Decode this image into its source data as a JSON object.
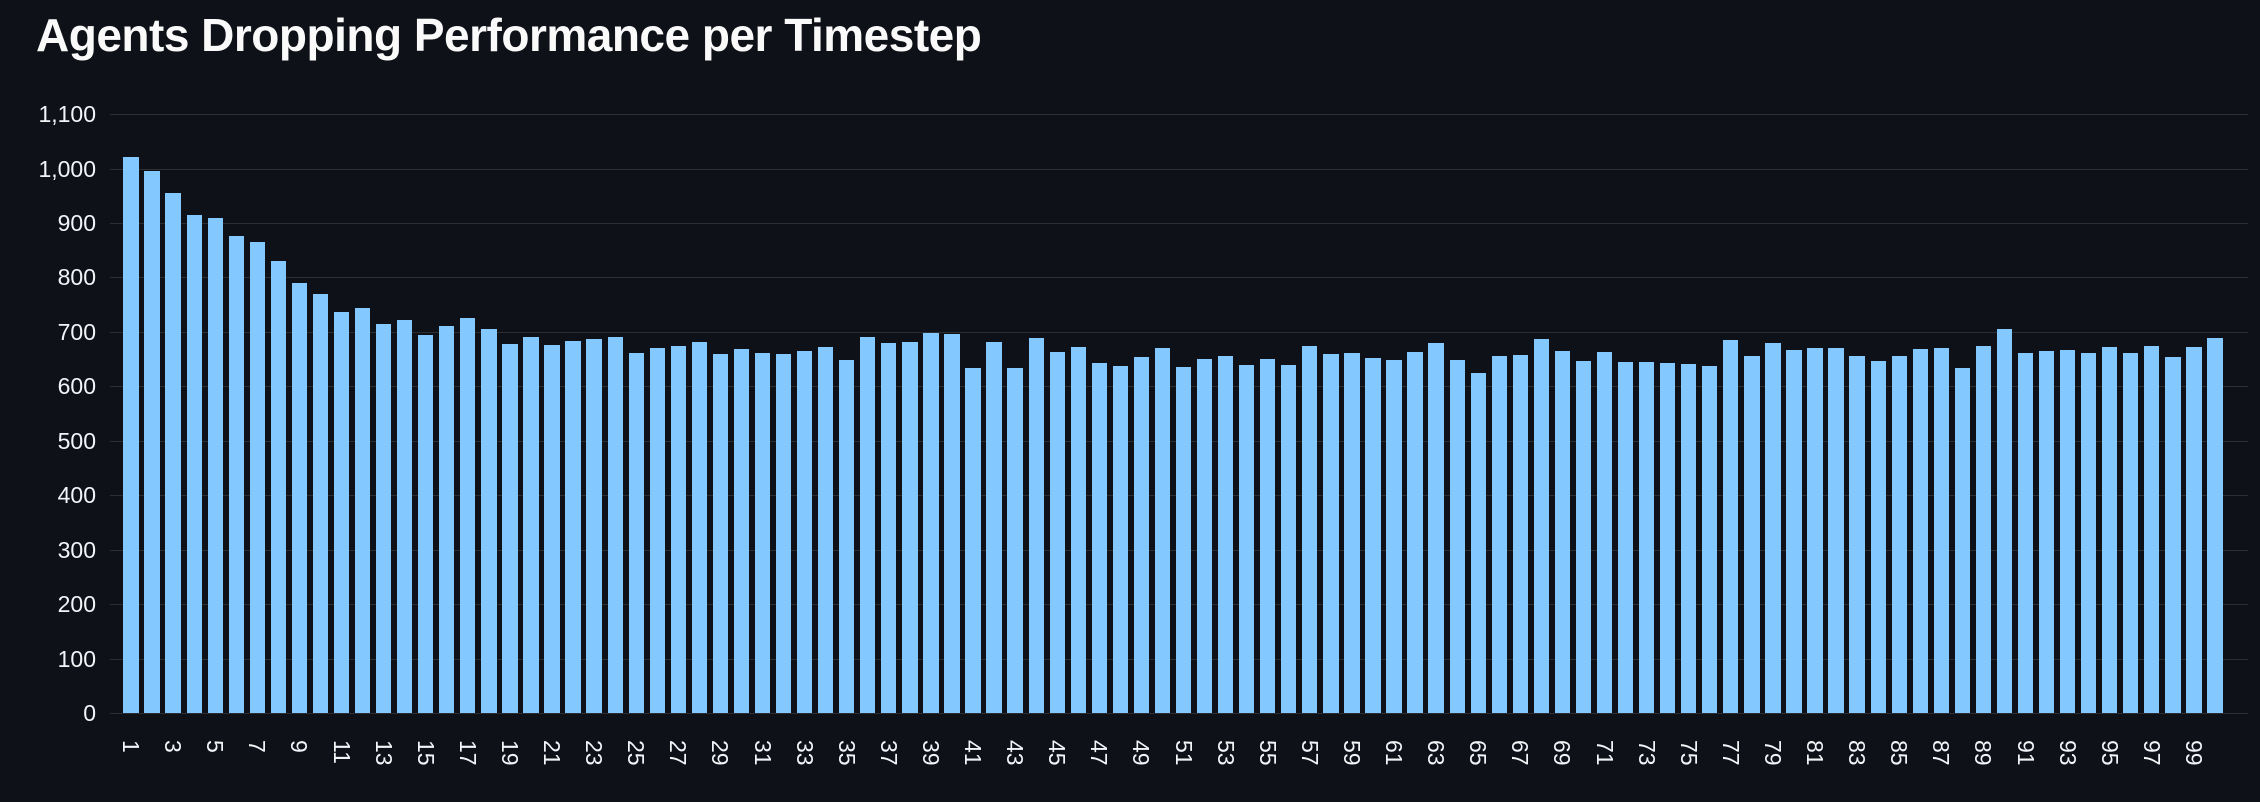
{
  "title": "Agents Dropping Performance per Timestep",
  "chart_data": {
    "type": "bar",
    "title": "Agents Dropping Performance per Timestep",
    "xlabel": "",
    "ylabel": "",
    "ylim": [
      0,
      1100
    ],
    "grid": "horizontal",
    "legend": "none",
    "x_label_rotation_deg": 90,
    "x_labels_shown_every": "odd timesteps 1-99",
    "x": [
      1,
      2,
      3,
      4,
      5,
      6,
      7,
      8,
      9,
      10,
      11,
      12,
      13,
      14,
      15,
      16,
      17,
      18,
      19,
      20,
      21,
      22,
      23,
      24,
      25,
      26,
      27,
      28,
      29,
      30,
      31,
      32,
      33,
      34,
      35,
      36,
      37,
      38,
      39,
      40,
      41,
      42,
      43,
      44,
      45,
      46,
      47,
      48,
      49,
      50,
      51,
      52,
      53,
      54,
      55,
      56,
      57,
      58,
      59,
      60,
      61,
      62,
      63,
      64,
      65,
      66,
      67,
      68,
      69,
      70,
      71,
      72,
      73,
      74,
      75,
      76,
      77,
      78,
      79,
      80,
      81,
      82,
      83,
      84,
      85,
      86,
      87,
      88,
      89,
      90,
      91,
      92,
      93,
      94,
      95,
      96,
      97,
      98,
      99,
      100
    ],
    "values": [
      1021,
      996,
      956,
      914,
      910,
      877,
      866,
      831,
      789,
      770,
      737,
      744,
      714,
      722,
      694,
      711,
      725,
      706,
      678,
      690,
      676,
      684,
      688,
      691,
      661,
      670,
      675,
      681,
      659,
      669,
      661,
      659,
      666,
      673,
      648,
      691,
      680,
      682,
      698,
      696,
      634,
      682,
      633,
      689,
      663,
      673,
      643,
      637,
      654,
      670,
      636,
      651,
      656,
      639,
      650,
      640,
      675,
      660,
      662,
      653,
      648,
      664,
      680,
      649,
      624,
      655,
      657,
      687,
      665,
      647,
      663,
      644,
      645,
      643,
      642,
      637,
      686,
      655,
      679,
      667,
      670,
      670,
      656,
      646,
      656,
      668,
      670,
      634,
      674,
      705,
      661,
      665,
      667,
      662,
      672,
      662,
      675,
      654,
      673,
      689
    ],
    "y_tick_values": [
      0,
      100,
      200,
      300,
      400,
      500,
      600,
      700,
      800,
      900,
      1000,
      1100
    ],
    "y_tick_labels": [
      "0",
      "100",
      "200",
      "300",
      "400",
      "500",
      "600",
      "700",
      "800",
      "900",
      "1,000",
      "1,100"
    ],
    "x_tick_labels": [
      "1",
      "3",
      "5",
      "7",
      "9",
      "11",
      "13",
      "15",
      "17",
      "19",
      "21",
      "23",
      "25",
      "27",
      "29",
      "31",
      "33",
      "35",
      "37",
      "39",
      "41",
      "43",
      "45",
      "47",
      "49",
      "51",
      "53",
      "55",
      "57",
      "59",
      "61",
      "63",
      "65",
      "67",
      "69",
      "71",
      "73",
      "75",
      "77",
      "79",
      "81",
      "83",
      "85",
      "87",
      "89",
      "91",
      "93",
      "95",
      "97",
      "99"
    ],
    "colors": {
      "background": "#0e1117",
      "bar": "#83c9ff",
      "grid": "rgba(250,250,250,0.13)",
      "tick_label": "#f2f4f8",
      "title": "#fafafa"
    }
  }
}
